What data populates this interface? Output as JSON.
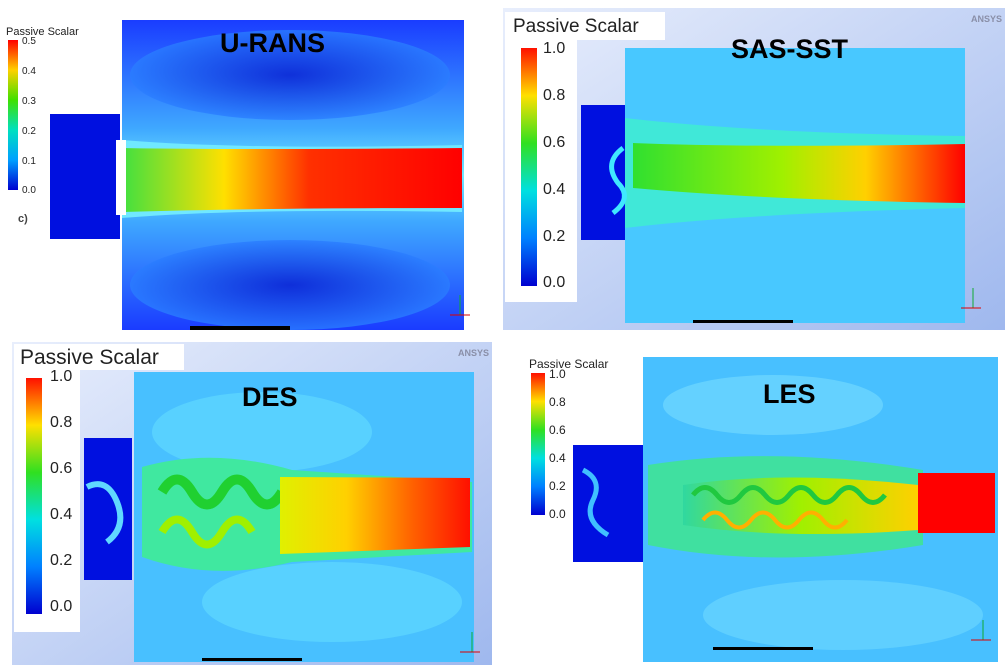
{
  "colorbar_title": "Passive Scalar",
  "ansys_mark": "ANSYS",
  "colors": {
    "jet_low": "#0000ff",
    "jet_cyan": "#00d8ff",
    "jet_green": "#10e010",
    "jet_yellow": "#ffff00",
    "jet_red": "#ff0000",
    "background_blue": "#5db8ff"
  },
  "panels": {
    "urans": {
      "title": "U-RANS",
      "ticks": [
        "0.5",
        "0.4",
        "0.3",
        "0.2",
        "0.1",
        "0.0"
      ],
      "subfig_label": "c)"
    },
    "sas": {
      "title": "SAS-SST",
      "ticks": [
        "1.0",
        "0.8",
        "0.6",
        "0.4",
        "0.2",
        "0.0"
      ]
    },
    "des": {
      "title": "DES",
      "ticks": [
        "1.0",
        "0.8",
        "0.6",
        "0.4",
        "0.2",
        "0.0"
      ]
    },
    "les": {
      "title": "LES",
      "ticks": [
        "1.0",
        "0.8",
        "0.6",
        "0.4",
        "0.2",
        "0.0"
      ]
    }
  }
}
